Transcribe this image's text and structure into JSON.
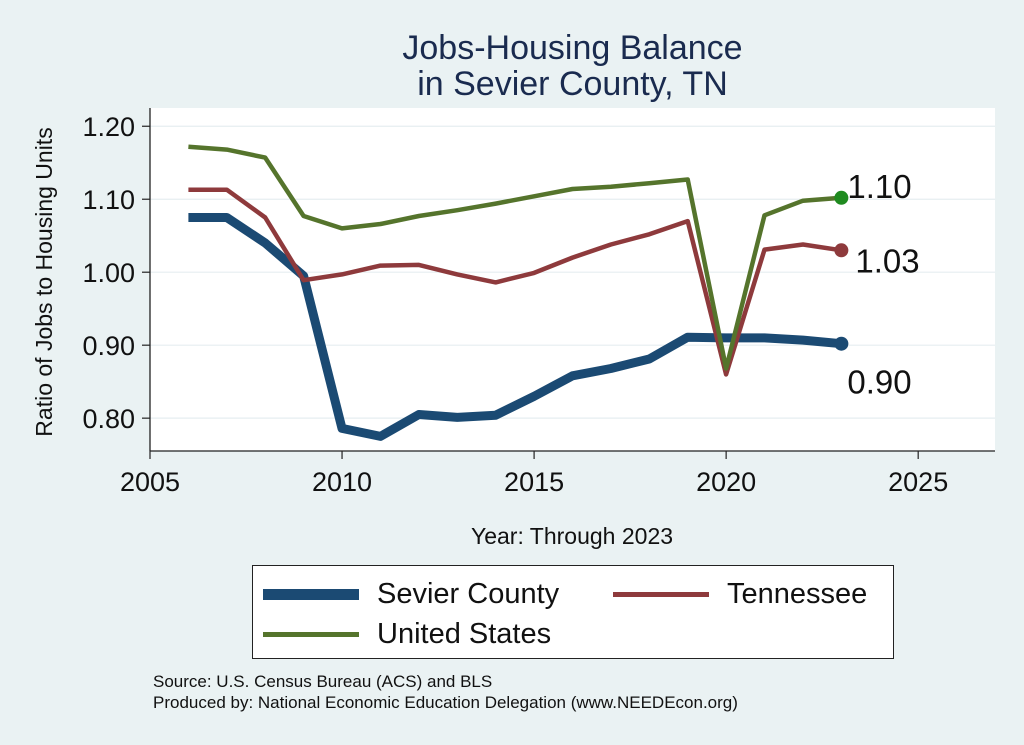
{
  "chart_data": {
    "type": "line",
    "title_line1": "Jobs-Housing Balance",
    "title_line2": "in Sevier County, TN",
    "xlabel": "Year: Through 2023",
    "ylabel": "Ratio of Jobs to Housing Units",
    "xlim": [
      2005,
      2027
    ],
    "ylim": [
      0.755,
      1.225
    ],
    "xticks": [
      2005,
      2010,
      2015,
      2020,
      2025
    ],
    "yticks": [
      0.8,
      0.9,
      1.0,
      1.1,
      1.2
    ],
    "ytick_labels": [
      "0.80",
      "0.90",
      "1.00",
      "1.10",
      "1.20"
    ],
    "grid": true,
    "legend_position": "bottom",
    "x": [
      2006,
      2007,
      2008,
      2009,
      2010,
      2011,
      2012,
      2013,
      2014,
      2015,
      2016,
      2017,
      2018,
      2019,
      2020,
      2021,
      2022,
      2023
    ],
    "series": [
      {
        "name": "Sevier County",
        "color": "#1b4a73",
        "values": [
          1.075,
          1.075,
          1.04,
          0.995,
          0.786,
          0.775,
          0.805,
          0.801,
          0.804,
          0.83,
          0.858,
          0.868,
          0.881,
          0.911,
          0.91,
          0.91,
          0.907,
          0.902
        ],
        "end_label": "0.90"
      },
      {
        "name": "Tennessee",
        "color": "#8e3a3c",
        "values": [
          1.113,
          1.113,
          1.075,
          0.989,
          0.997,
          1.009,
          1.01,
          0.997,
          0.986,
          0.999,
          1.02,
          1.038,
          1.052,
          1.07,
          0.86,
          1.031,
          1.038,
          1.03
        ],
        "end_label": "1.03"
      },
      {
        "name": "United States",
        "color": "#55742c",
        "values": [
          1.172,
          1.168,
          1.157,
          1.077,
          1.06,
          1.066,
          1.077,
          1.085,
          1.094,
          1.104,
          1.114,
          1.117,
          1.122,
          1.127,
          0.868,
          1.078,
          1.098,
          1.102
        ],
        "end_label": "1.10",
        "end_marker_color": "#1f8a1f"
      }
    ],
    "source_lines": [
      "Source: U.S. Census Bureau (ACS) and BLS",
      "Produced by: National Economic Education Delegation (www.NEEDEcon.org)"
    ]
  }
}
